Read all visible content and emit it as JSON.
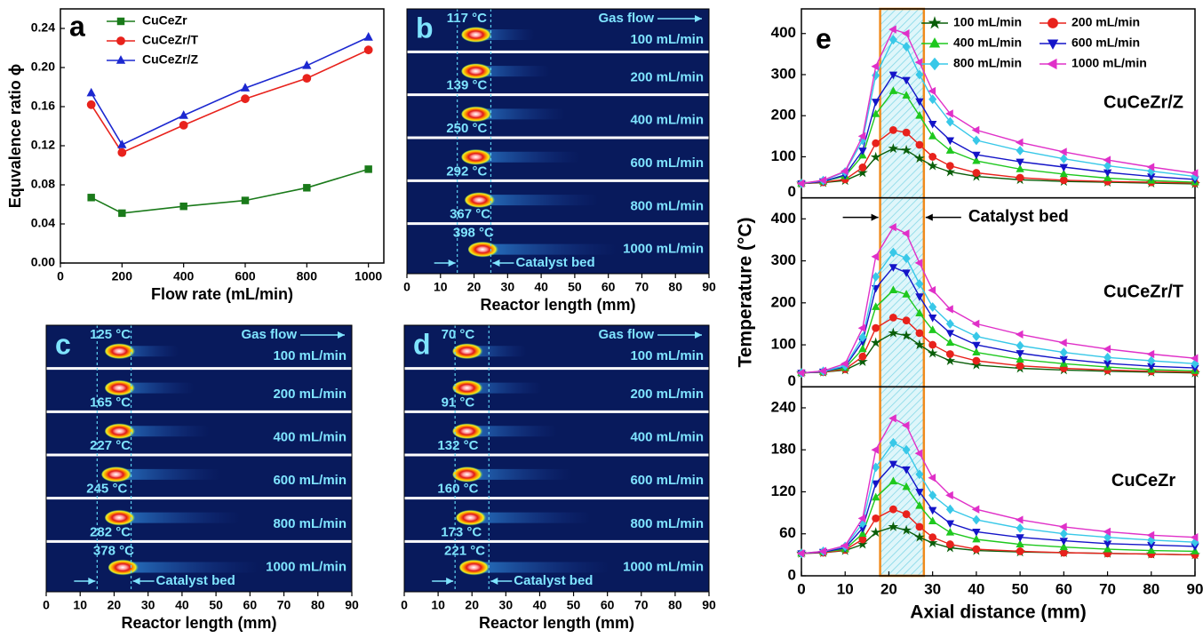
{
  "chart_data": [
    {
      "type": "line",
      "label": "a",
      "xlabel": "Flow rate (mL/min)",
      "ylabel": "Equvalence ratio ϕ",
      "x": [
        100,
        200,
        400,
        600,
        800,
        1000
      ],
      "xlim": [
        0,
        1050
      ],
      "xticks": [
        0,
        200,
        400,
        600,
        800,
        1000
      ],
      "ylim": [
        0,
        0.26
      ],
      "yticks": [
        {
          "value": 0,
          "label": "0.00"
        },
        {
          "value": 0.04,
          "label": "0.04"
        },
        {
          "value": 0.08,
          "label": "0.08"
        },
        {
          "value": 0.12,
          "label": "0.12"
        },
        {
          "value": 0.16,
          "label": "0.16"
        },
        {
          "value": 0.2,
          "label": "0.20"
        },
        {
          "value": 0.24,
          "label": "0.24"
        }
      ],
      "legend": "upper left",
      "series": [
        {
          "name": "CuCeZr",
          "color": "#1a7a1a",
          "marker": "square",
          "values": [
            0.067,
            0.051,
            0.058,
            0.064,
            0.077,
            0.096
          ]
        },
        {
          "name": "CuCeZr/T",
          "color": "#e8221c",
          "marker": "circle",
          "values": [
            0.162,
            0.113,
            0.141,
            0.168,
            0.189,
            0.218
          ]
        },
        {
          "name": "CuCeZr/Z",
          "color": "#1c28d0",
          "marker": "triangle-up",
          "values": [
            0.174,
            0.121,
            0.151,
            0.179,
            0.202,
            0.231
          ]
        }
      ]
    },
    {
      "type": "heatmap",
      "label": "b",
      "xlabel": "Reactor length (mm)",
      "xlim": [
        0,
        90
      ],
      "xticks": [
        0,
        10,
        20,
        30,
        40,
        50,
        60,
        70,
        80,
        90
      ],
      "flow_annotation": "Gas flow",
      "bed_annotation": "Catalyst bed",
      "catalyst_bed": [
        15,
        25
      ],
      "rows": [
        {
          "flow": "100 mL/min",
          "temperature": "117 °C",
          "hotspot": 21
        },
        {
          "flow": "200 mL/min",
          "temperature": "139 °C",
          "hotspot": 21
        },
        {
          "flow": "400 mL/min",
          "temperature": "250 °C",
          "hotspot": 21
        },
        {
          "flow": "600 mL/min",
          "temperature": "292 °C",
          "hotspot": 21
        },
        {
          "flow": "800 mL/min",
          "temperature": "367 °C",
          "hotspot": 22
        },
        {
          "flow": "1000 mL/min",
          "temperature": "398 °C",
          "hotspot": 23
        }
      ]
    },
    {
      "type": "heatmap",
      "label": "c",
      "xlabel": "Reactor length (mm)",
      "xlim": [
        0,
        90
      ],
      "xticks": [
        0,
        10,
        20,
        30,
        40,
        50,
        60,
        70,
        80,
        90
      ],
      "flow_annotation": "Gas flow",
      "bed_annotation": "Catalyst bed",
      "catalyst_bed": [
        15,
        25
      ],
      "rows": [
        {
          "flow": "100 mL/min",
          "temperature": "125 °C",
          "hotspot": 22
        },
        {
          "flow": "200 mL/min",
          "temperature": "165 °C",
          "hotspot": 22
        },
        {
          "flow": "400 mL/min",
          "temperature": "227 °C",
          "hotspot": 22
        },
        {
          "flow": "600 mL/min",
          "temperature": "245 °C",
          "hotspot": 21
        },
        {
          "flow": "800 mL/min",
          "temperature": "282 °C",
          "hotspot": 22
        },
        {
          "flow": "1000 mL/min",
          "temperature": "378 °C",
          "hotspot": 23
        }
      ]
    },
    {
      "type": "heatmap",
      "label": "d",
      "xlabel": "Reactor length (mm)",
      "xlim": [
        0,
        90
      ],
      "xticks": [
        0,
        10,
        20,
        30,
        40,
        50,
        60,
        70,
        80,
        90
      ],
      "flow_annotation": "Gas flow",
      "bed_annotation": "Catalyst bed",
      "catalyst_bed": [
        15,
        25
      ],
      "rows": [
        {
          "flow": "100 mL/min",
          "temperature": "70 °C",
          "hotspot": 19
        },
        {
          "flow": "200 mL/min",
          "temperature": "91 °C",
          "hotspot": 19
        },
        {
          "flow": "400 mL/min",
          "temperature": "132 °C",
          "hotspot": 19
        },
        {
          "flow": "600 mL/min",
          "temperature": "160 °C",
          "hotspot": 19
        },
        {
          "flow": "800 mL/min",
          "temperature": "173 °C",
          "hotspot": 20
        },
        {
          "flow": "1000 mL/min",
          "temperature": "221 °C",
          "hotspot": 21
        }
      ]
    },
    {
      "type": "line-stack",
      "label": "e",
      "xlabel": "Axial distance (mm)",
      "ylabel": "Temperature (°C)",
      "x": [
        0,
        5,
        10,
        14,
        17,
        21,
        24,
        27,
        30,
        34,
        40,
        50,
        60,
        70,
        80,
        90
      ],
      "xlim": [
        0,
        90
      ],
      "xticks": [
        0,
        10,
        20,
        30,
        40,
        50,
        60,
        70,
        80,
        90
      ],
      "catalyst_bed": [
        18,
        28
      ],
      "bed_annotation": "Catalyst bed",
      "series": [
        {
          "name": "100 mL/min",
          "color": "#0a5e0a",
          "marker": "star"
        },
        {
          "name": "200 mL/min",
          "color": "#e8221c",
          "marker": "circle"
        },
        {
          "name": "400 mL/min",
          "color": "#1ec81e",
          "marker": "triangle-up"
        },
        {
          "name": "600 mL/min",
          "color": "#1414c8",
          "marker": "triangle-down"
        },
        {
          "name": "800 mL/min",
          "color": "#38c8e8",
          "marker": "diamond"
        },
        {
          "name": "1000 mL/min",
          "color": "#e030c8",
          "marker": "triangle-left"
        }
      ],
      "panels": [
        {
          "name": "CuCeZr/Z",
          "ylim": [
            0,
            460
          ],
          "yticks": [
            0,
            100,
            200,
            300,
            400
          ],
          "values": [
            [
              35,
              37,
              42,
              61,
              99,
              120,
              116,
              96,
              78,
              63,
              52,
              44,
              40,
              38,
              36,
              34
            ],
            [
              35,
              38,
              45,
              74,
              133,
              165,
              159,
              129,
              100,
              78,
              61,
              49,
              43,
              40,
              38,
              36
            ],
            [
              35,
              40,
              53,
              103,
              204,
              260,
              249,
              200,
              150,
              115,
              90,
              70,
              58,
              48,
              42,
              38
            ],
            [
              35,
              40,
              56,
              115,
              234,
              300,
              287,
              235,
              180,
              140,
              105,
              88,
              75,
              62,
              52,
              45
            ],
            [
              35,
              42,
              63,
              140,
              298,
              385,
              368,
              300,
              240,
              185,
              140,
              115,
              95,
              78,
              65,
              52
            ],
            [
              35,
              43,
              65,
              150,
              320,
              410,
              400,
              330,
              260,
              205,
              165,
              135,
              112,
              92,
              75,
              60
            ]
          ]
        },
        {
          "name": "CuCeZr/T",
          "ylim": [
            0,
            450
          ],
          "yticks": [
            0,
            100,
            200,
            300,
            400
          ],
          "values": [
            [
              33,
              35,
              40,
              60,
              105,
              128,
              122,
              100,
              80,
              62,
              52,
              44,
              40,
              37,
              35,
              33
            ],
            [
              33,
              35,
              42,
              72,
              140,
              165,
              158,
              128,
              100,
              78,
              62,
              50,
              44,
              40,
              37,
              35
            ],
            [
              33,
              36,
              45,
              90,
              190,
              230,
              220,
              175,
              135,
              105,
              82,
              65,
              55,
              47,
              41,
              38
            ],
            [
              33,
              36,
              48,
              108,
              235,
              285,
              272,
              215,
              165,
              128,
              100,
              80,
              66,
              56,
              49,
              45
            ],
            [
              33,
              37,
              50,
              118,
              262,
              320,
              306,
              245,
              190,
              150,
              120,
              98,
              82,
              70,
              62,
              55
            ],
            [
              33,
              38,
              55,
              140,
              310,
              380,
              365,
              295,
              230,
              185,
              150,
              125,
              105,
              90,
              78,
              68
            ]
          ]
        },
        {
          "name": "CuCeZr",
          "ylim": [
            0,
            270
          ],
          "yticks": [
            0,
            60,
            120,
            180,
            240
          ],
          "values": [
            [
              32,
              33,
              36,
              45,
              62,
              70,
              65,
              55,
              47,
              40,
              36,
              34,
              33,
              32,
              31,
              30
            ],
            [
              32,
              33,
              37,
              52,
              82,
              95,
              88,
              70,
              55,
              45,
              38,
              35,
              33,
              32,
              31,
              30
            ],
            [
              32,
              34,
              38,
              60,
              112,
              135,
              127,
              100,
              78,
              62,
              52,
              45,
              41,
              38,
              36,
              35
            ],
            [
              32,
              34,
              40,
              68,
              132,
              160,
              152,
              120,
              94,
              75,
              63,
              55,
              50,
              46,
              44,
              42
            ],
            [
              32,
              35,
              42,
              75,
              155,
              190,
              180,
              145,
              115,
              95,
              80,
              68,
              60,
              55,
              51,
              48
            ],
            [
              32,
              35,
              43,
              82,
              180,
              225,
              215,
              175,
              140,
              115,
              95,
              80,
              70,
              63,
              58,
              55
            ]
          ]
        }
      ]
    }
  ]
}
